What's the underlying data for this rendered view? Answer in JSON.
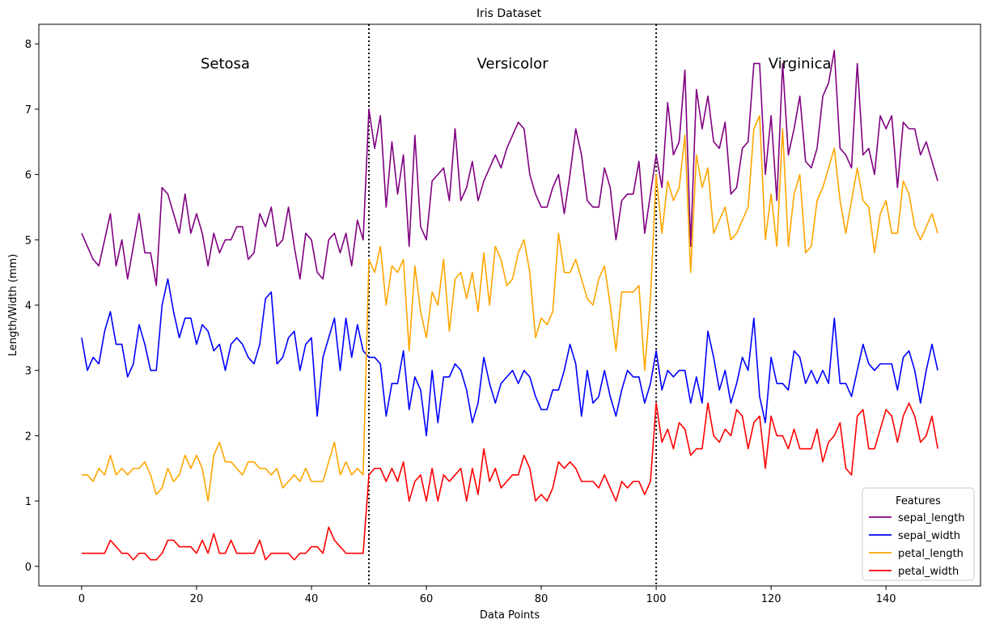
{
  "chart_data": {
    "type": "line",
    "title": "Iris Dataset",
    "xlabel": "Data Points",
    "ylabel": "Length/Width (mm)",
    "xlim": [
      -7.45,
      156.45
    ],
    "ylim": [
      -0.3,
      8.3
    ],
    "xticks": [
      0,
      20,
      40,
      60,
      80,
      100,
      120,
      140
    ],
    "yticks": [
      0,
      1,
      2,
      3,
      4,
      5,
      6,
      7,
      8
    ],
    "grid": false,
    "legend": {
      "title": "Features",
      "placement": "lower-right"
    },
    "dividers": [
      50,
      100
    ],
    "annotations": [
      {
        "text": "Setosa",
        "x": 25,
        "y": 7.7
      },
      {
        "text": "Versicolor",
        "x": 75,
        "y": 7.7
      },
      {
        "text": "Virginica",
        "x": 125,
        "y": 7.7
      }
    ],
    "series": [
      {
        "name": "sepal_length",
        "color": "#800080",
        "values": [
          5.1,
          4.9,
          4.7,
          4.6,
          5.0,
          5.4,
          4.6,
          5.0,
          4.4,
          4.9,
          5.4,
          4.8,
          4.8,
          4.3,
          5.8,
          5.7,
          5.4,
          5.1,
          5.7,
          5.1,
          5.4,
          5.1,
          4.6,
          5.1,
          4.8,
          5.0,
          5.0,
          5.2,
          5.2,
          4.7,
          4.8,
          5.4,
          5.2,
          5.5,
          4.9,
          5.0,
          5.5,
          4.9,
          4.4,
          5.1,
          5.0,
          4.5,
          4.4,
          5.0,
          5.1,
          4.8,
          5.1,
          4.6,
          5.3,
          5.0,
          7.0,
          6.4,
          6.9,
          5.5,
          6.5,
          5.7,
          6.3,
          4.9,
          6.6,
          5.2,
          5.0,
          5.9,
          6.0,
          6.1,
          5.6,
          6.7,
          5.6,
          5.8,
          6.2,
          5.6,
          5.9,
          6.1,
          6.3,
          6.1,
          6.4,
          6.6,
          6.8,
          6.7,
          6.0,
          5.7,
          5.5,
          5.5,
          5.8,
          6.0,
          5.4,
          6.0,
          6.7,
          6.3,
          5.6,
          5.5,
          5.5,
          6.1,
          5.8,
          5.0,
          5.6,
          5.7,
          5.7,
          6.2,
          5.1,
          5.7,
          6.3,
          5.8,
          7.1,
          6.3,
          6.5,
          7.6,
          4.9,
          7.3,
          6.7,
          7.2,
          6.5,
          6.4,
          6.8,
          5.7,
          5.8,
          6.4,
          6.5,
          7.7,
          7.7,
          6.0,
          6.9,
          5.6,
          7.7,
          6.3,
          6.7,
          7.2,
          6.2,
          6.1,
          6.4,
          7.2,
          7.4,
          7.9,
          6.4,
          6.3,
          6.1,
          7.7,
          6.3,
          6.4,
          6.0,
          6.9,
          6.7,
          6.9,
          5.8,
          6.8,
          6.7,
          6.7,
          6.3,
          6.5,
          6.2,
          5.9
        ]
      },
      {
        "name": "sepal_width",
        "color": "#0000ff",
        "values": [
          3.5,
          3.0,
          3.2,
          3.1,
          3.6,
          3.9,
          3.4,
          3.4,
          2.9,
          3.1,
          3.7,
          3.4,
          3.0,
          3.0,
          4.0,
          4.4,
          3.9,
          3.5,
          3.8,
          3.8,
          3.4,
          3.7,
          3.6,
          3.3,
          3.4,
          3.0,
          3.4,
          3.5,
          3.4,
          3.2,
          3.1,
          3.4,
          4.1,
          4.2,
          3.1,
          3.2,
          3.5,
          3.6,
          3.0,
          3.4,
          3.5,
          2.3,
          3.2,
          3.5,
          3.8,
          3.0,
          3.8,
          3.2,
          3.7,
          3.3,
          3.2,
          3.2,
          3.1,
          2.3,
          2.8,
          2.8,
          3.3,
          2.4,
          2.9,
          2.7,
          2.0,
          3.0,
          2.2,
          2.9,
          2.9,
          3.1,
          3.0,
          2.7,
          2.2,
          2.5,
          3.2,
          2.8,
          2.5,
          2.8,
          2.9,
          3.0,
          2.8,
          3.0,
          2.9,
          2.6,
          2.4,
          2.4,
          2.7,
          2.7,
          3.0,
          3.4,
          3.1,
          2.3,
          3.0,
          2.5,
          2.6,
          3.0,
          2.6,
          2.3,
          2.7,
          3.0,
          2.9,
          2.9,
          2.5,
          2.8,
          3.3,
          2.7,
          3.0,
          2.9,
          3.0,
          3.0,
          2.5,
          2.9,
          2.5,
          3.6,
          3.2,
          2.7,
          3.0,
          2.5,
          2.8,
          3.2,
          3.0,
          3.8,
          2.6,
          2.2,
          3.2,
          2.8,
          2.8,
          2.7,
          3.3,
          3.2,
          2.8,
          3.0,
          2.8,
          3.0,
          2.8,
          3.8,
          2.8,
          2.8,
          2.6,
          3.0,
          3.4,
          3.1,
          3.0,
          3.1,
          3.1,
          3.1,
          2.7,
          3.2,
          3.3,
          3.0,
          2.5,
          3.0,
          3.4,
          3.0
        ]
      },
      {
        "name": "petal_length",
        "color": "#ffa500",
        "values": [
          1.4,
          1.4,
          1.3,
          1.5,
          1.4,
          1.7,
          1.4,
          1.5,
          1.4,
          1.5,
          1.5,
          1.6,
          1.4,
          1.1,
          1.2,
          1.5,
          1.3,
          1.4,
          1.7,
          1.5,
          1.7,
          1.5,
          1.0,
          1.7,
          1.9,
          1.6,
          1.6,
          1.5,
          1.4,
          1.6,
          1.6,
          1.5,
          1.5,
          1.4,
          1.5,
          1.2,
          1.3,
          1.4,
          1.3,
          1.5,
          1.3,
          1.3,
          1.3,
          1.6,
          1.9,
          1.4,
          1.6,
          1.4,
          1.5,
          1.4,
          4.7,
          4.5,
          4.9,
          4.0,
          4.6,
          4.5,
          4.7,
          3.3,
          4.6,
          3.9,
          3.5,
          4.2,
          4.0,
          4.7,
          3.6,
          4.4,
          4.5,
          4.1,
          4.5,
          3.9,
          4.8,
          4.0,
          4.9,
          4.7,
          4.3,
          4.4,
          4.8,
          5.0,
          4.5,
          3.5,
          3.8,
          3.7,
          3.9,
          5.1,
          4.5,
          4.5,
          4.7,
          4.4,
          4.1,
          4.0,
          4.4,
          4.6,
          4.0,
          3.3,
          4.2,
          4.2,
          4.2,
          4.3,
          3.0,
          4.1,
          6.0,
          5.1,
          5.9,
          5.6,
          5.8,
          6.6,
          4.5,
          6.3,
          5.8,
          6.1,
          5.1,
          5.3,
          5.5,
          5.0,
          5.1,
          5.3,
          5.5,
          6.7,
          6.9,
          5.0,
          5.7,
          4.9,
          6.7,
          4.9,
          5.7,
          6.0,
          4.8,
          4.9,
          5.6,
          5.8,
          6.1,
          6.4,
          5.6,
          5.1,
          5.6,
          6.1,
          5.6,
          5.5,
          4.8,
          5.4,
          5.6,
          5.1,
          5.1,
          5.9,
          5.7,
          5.2,
          5.0,
          5.2,
          5.4,
          5.1
        ]
      },
      {
        "name": "petal_width",
        "color": "#ff0000",
        "values": [
          0.2,
          0.2,
          0.2,
          0.2,
          0.2,
          0.4,
          0.3,
          0.2,
          0.2,
          0.1,
          0.2,
          0.2,
          0.1,
          0.1,
          0.2,
          0.4,
          0.4,
          0.3,
          0.3,
          0.3,
          0.2,
          0.4,
          0.2,
          0.5,
          0.2,
          0.2,
          0.4,
          0.2,
          0.2,
          0.2,
          0.2,
          0.4,
          0.1,
          0.2,
          0.2,
          0.2,
          0.2,
          0.1,
          0.2,
          0.2,
          0.3,
          0.3,
          0.2,
          0.6,
          0.4,
          0.3,
          0.2,
          0.2,
          0.2,
          0.2,
          1.4,
          1.5,
          1.5,
          1.3,
          1.5,
          1.3,
          1.6,
          1.0,
          1.3,
          1.4,
          1.0,
          1.5,
          1.0,
          1.4,
          1.3,
          1.4,
          1.5,
          1.0,
          1.5,
          1.1,
          1.8,
          1.3,
          1.5,
          1.2,
          1.3,
          1.4,
          1.4,
          1.7,
          1.5,
          1.0,
          1.1,
          1.0,
          1.2,
          1.6,
          1.5,
          1.6,
          1.5,
          1.3,
          1.3,
          1.3,
          1.2,
          1.4,
          1.2,
          1.0,
          1.3,
          1.2,
          1.3,
          1.3,
          1.1,
          1.3,
          2.5,
          1.9,
          2.1,
          1.8,
          2.2,
          2.1,
          1.7,
          1.8,
          1.8,
          2.5,
          2.0,
          1.9,
          2.1,
          2.0,
          2.4,
          2.3,
          1.8,
          2.2,
          2.3,
          1.5,
          2.3,
          2.0,
          2.0,
          1.8,
          2.1,
          1.8,
          1.8,
          1.8,
          2.1,
          1.6,
          1.9,
          2.0,
          2.2,
          1.5,
          1.4,
          2.3,
          2.4,
          1.8,
          1.8,
          2.1,
          2.4,
          2.3,
          1.9,
          2.3,
          2.5,
          2.3,
          1.9,
          2.0,
          2.3,
          1.8
        ]
      }
    ]
  }
}
